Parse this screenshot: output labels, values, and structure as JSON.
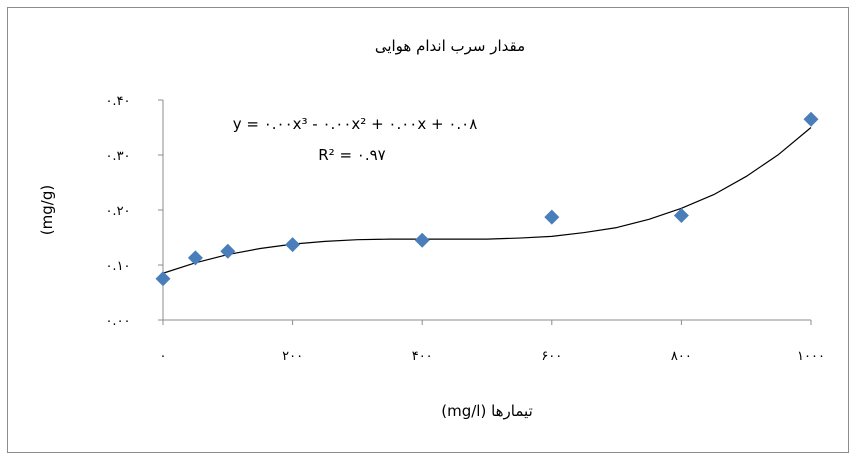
{
  "chart_data": {
    "type": "scatter",
    "title": "مقدار سرب اندام هوایی",
    "xlabel": "تیمارها (mg/l)",
    "ylabel": "(mg/g)",
    "xlim": [
      0,
      1000
    ],
    "ylim": [
      0,
      0.4
    ],
    "x_ticks": [
      0,
      200,
      400,
      600,
      800,
      1000
    ],
    "x_tick_labels": [
      "۰",
      "۲۰۰",
      "۴۰۰",
      "۶۰۰",
      "۸۰۰",
      "۱۰۰۰"
    ],
    "y_ticks": [
      0,
      0.1,
      0.2,
      0.3,
      0.4
    ],
    "y_tick_labels": [
      "۰.۰۰",
      "۰.۱۰",
      "۰.۲۰",
      "۰.۳۰",
      "۰.۴۰"
    ],
    "grid": false,
    "legend": "none",
    "marker_color": "#4A7EBB",
    "series": [
      {
        "x": [
          0,
          50,
          100,
          200,
          400,
          600,
          800,
          1000
        ],
        "y": [
          0.075,
          0.113,
          0.125,
          0.137,
          0.145,
          0.187,
          0.19,
          0.365
        ]
      }
    ],
    "trendline": {
      "type": "polynomial",
      "order": 3,
      "points": [
        [
          0,
          0.085
        ],
        [
          50,
          0.104
        ],
        [
          100,
          0.119
        ],
        [
          150,
          0.13
        ],
        [
          200,
          0.138
        ],
        [
          250,
          0.143
        ],
        [
          300,
          0.146
        ],
        [
          350,
          0.147
        ],
        [
          400,
          0.147
        ],
        [
          450,
          0.147
        ],
        [
          500,
          0.147
        ],
        [
          550,
          0.149
        ],
        [
          600,
          0.152
        ],
        [
          650,
          0.159
        ],
        [
          700,
          0.168
        ],
        [
          750,
          0.183
        ],
        [
          800,
          0.203
        ],
        [
          850,
          0.228
        ],
        [
          900,
          0.261
        ],
        [
          950,
          0.301
        ],
        [
          1000,
          0.35
        ]
      ],
      "equation": "y = ۰.۰۰x³ - ۰.۰۰x² + ۰.۰۰x + ۰.۰۸",
      "r_squared": "R² = ۰.۹۷"
    }
  }
}
